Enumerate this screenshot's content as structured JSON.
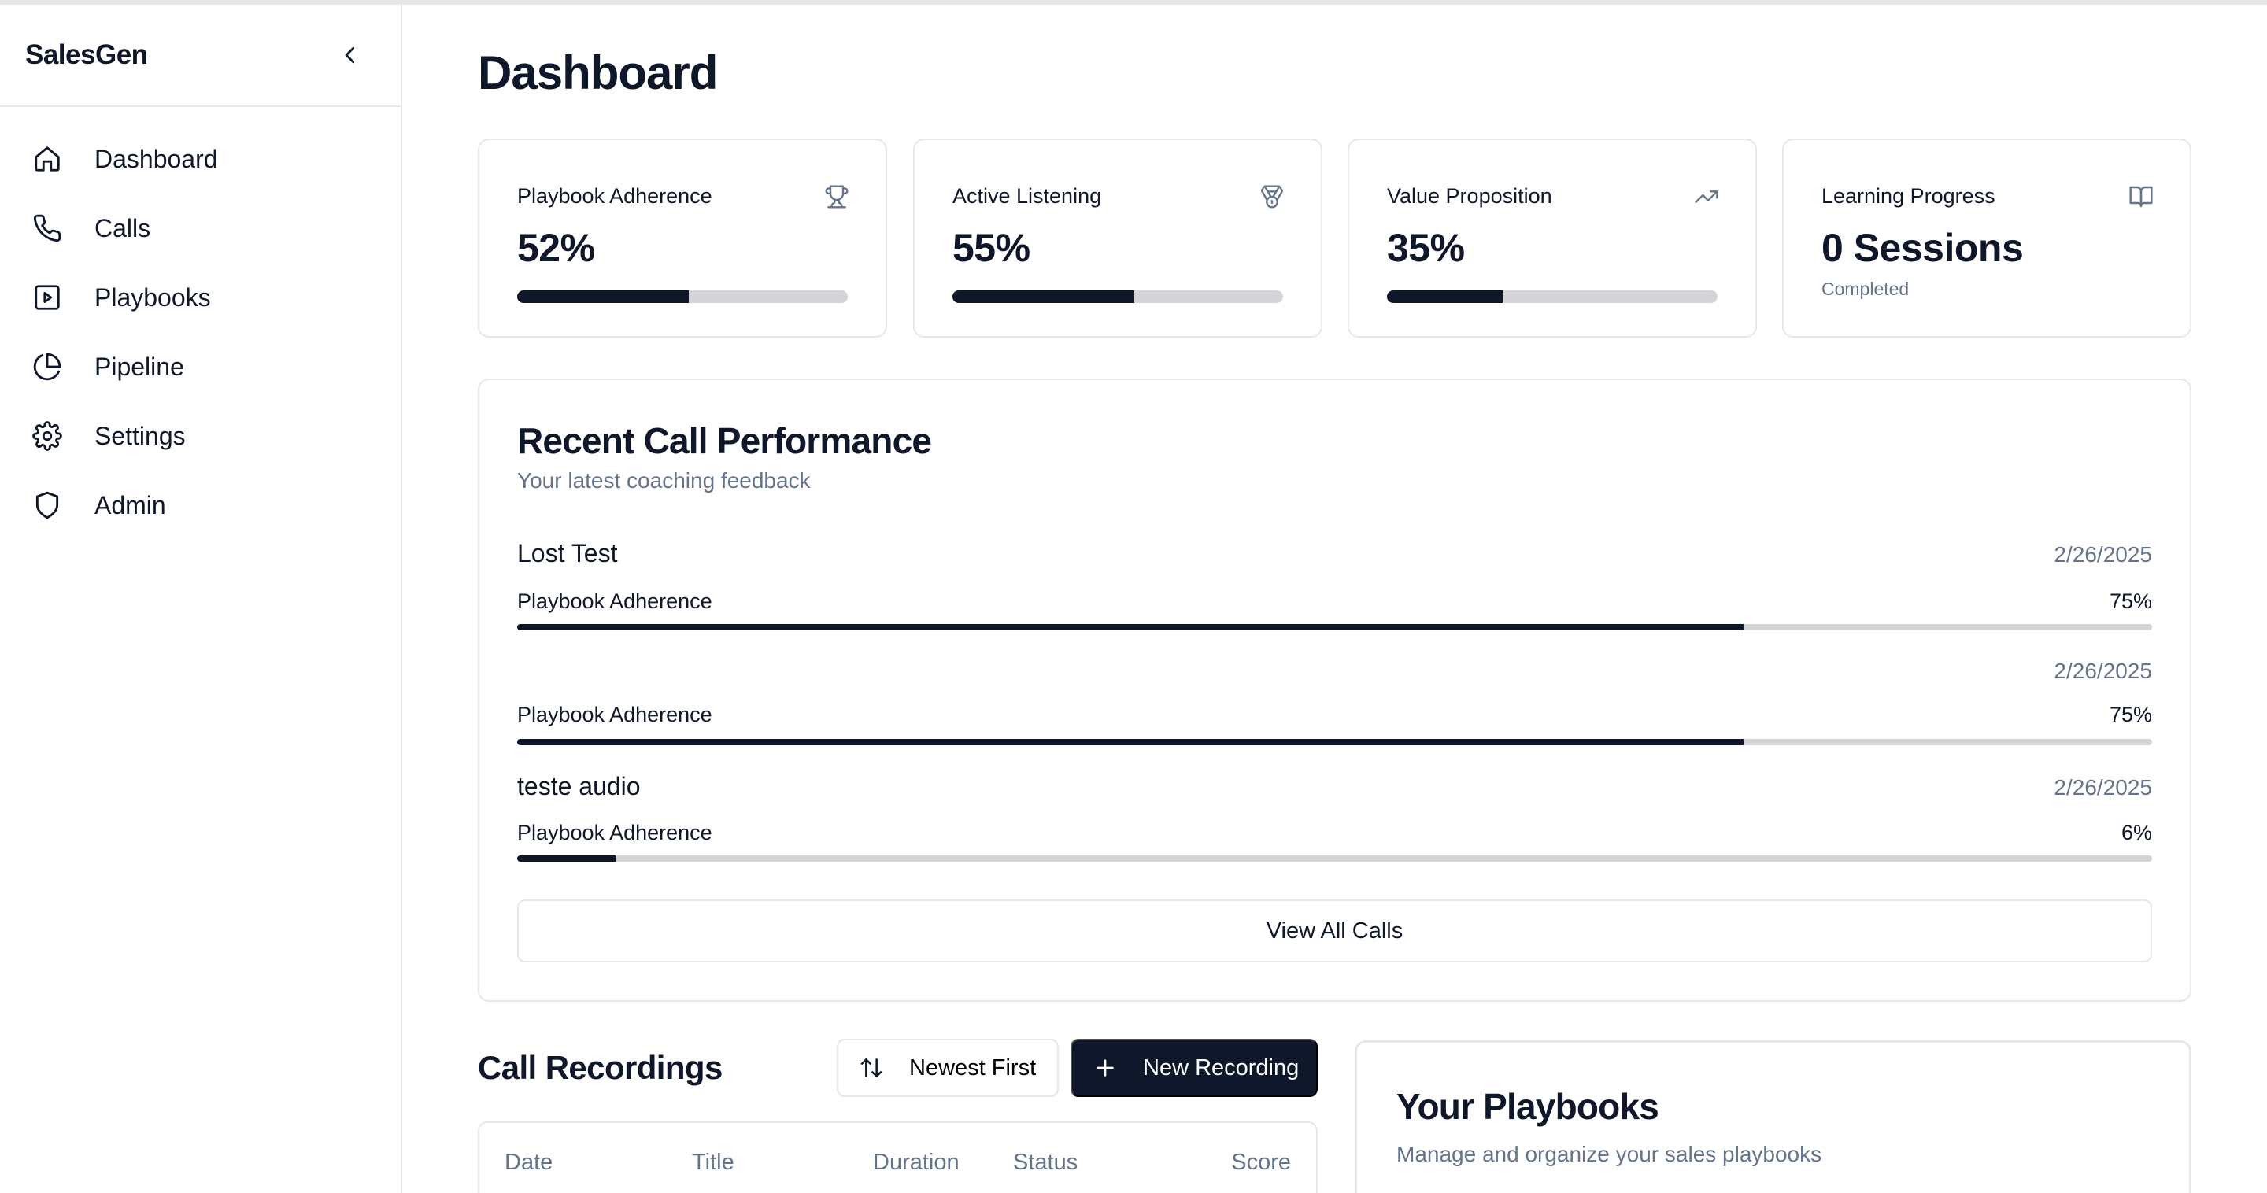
{
  "sidebar": {
    "brand": "SalesGen",
    "items": [
      {
        "label": "Dashboard",
        "icon": "home-icon"
      },
      {
        "label": "Calls",
        "icon": "phone-icon"
      },
      {
        "label": "Playbooks",
        "icon": "play-square-icon"
      },
      {
        "label": "Pipeline",
        "icon": "pie-chart-icon"
      },
      {
        "label": "Settings",
        "icon": "gear-icon"
      },
      {
        "label": "Admin",
        "icon": "shield-icon"
      }
    ]
  },
  "page": {
    "title": "Dashboard"
  },
  "stats": [
    {
      "label": "Playbook Adherence",
      "value": "52%",
      "progress": 0.52,
      "icon": "trophy-icon"
    },
    {
      "label": "Active Listening",
      "value": "55%",
      "progress": 0.55,
      "icon": "medal-icon"
    },
    {
      "label": "Value Proposition",
      "value": "35%",
      "progress": 0.35,
      "icon": "trending-up-icon"
    },
    {
      "label": "Learning Progress",
      "value": "0 Sessions",
      "sub": "Completed",
      "icon": "book-open-icon"
    }
  ],
  "performance": {
    "title": "Recent Call Performance",
    "subtitle": "Your latest coaching feedback",
    "calls": [
      {
        "name": "Lost Test",
        "date": "2/26/2025",
        "metric": "Playbook Adherence",
        "value": "75%",
        "progress": 0.75
      },
      {
        "name": "",
        "date": "2/26/2025",
        "metric": "Playbook Adherence",
        "value": "75%",
        "progress": 0.75
      },
      {
        "name": "teste audio",
        "date": "2/26/2025",
        "metric": "Playbook Adherence",
        "value": "6%",
        "progress": 0.06
      }
    ],
    "view_all_label": "View All Calls"
  },
  "recordings": {
    "title": "Call Recordings",
    "sort_label": "Newest First",
    "new_label": "New Recording",
    "columns": [
      "Date",
      "Title",
      "Duration",
      "Status",
      "Score"
    ]
  },
  "playbooks": {
    "title": "Your Playbooks",
    "subtitle": "Manage and organize your sales playbooks"
  },
  "colors": {
    "primary": "#0f172a",
    "muted": "#64748b",
    "border": "#e5e7eb",
    "track": "#d4d4d8"
  }
}
